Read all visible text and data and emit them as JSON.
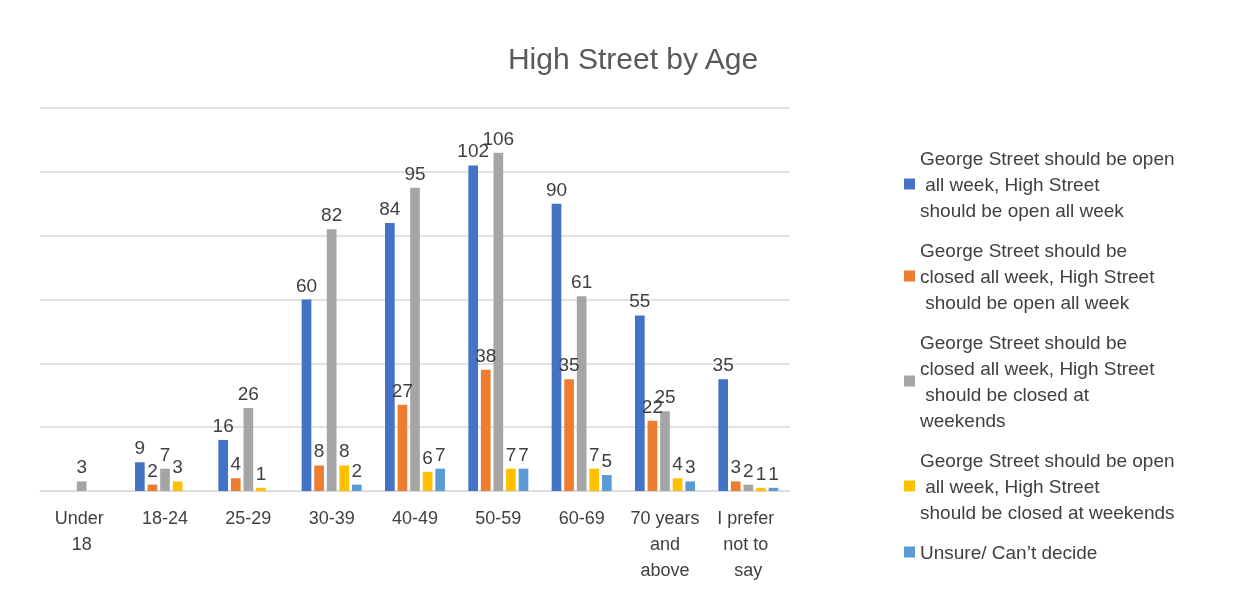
{
  "chart_data": {
    "type": "bar",
    "title": "High Street by Age",
    "categories": [
      "Under 18",
      "18-24",
      "25-29",
      "30-39",
      "40-49",
      "50-59",
      "60-69",
      "70 years and above",
      "I prefer not to say"
    ],
    "series": [
      {
        "name": "George Street should be open all week, High Street should be open all week",
        "color": "#4472c4",
        "values": [
          null,
          9,
          16,
          60,
          84,
          102,
          90,
          55,
          35
        ]
      },
      {
        "name": "George Street should be closed all week, High Street should be open all week",
        "color": "#ed7d31",
        "values": [
          null,
          2,
          4,
          8,
          27,
          38,
          35,
          22,
          3
        ]
      },
      {
        "name": "George Street should be closed all week, High Street should be closed at  weekends",
        "color": "#a5a5a5",
        "values": [
          3,
          7,
          26,
          82,
          95,
          106,
          61,
          25,
          2
        ]
      },
      {
        "name": "George Street should be open all week, High Street should be closed at weekends",
        "color": "#ffc000",
        "values": [
          null,
          3,
          1,
          8,
          6,
          7,
          7,
          4,
          1
        ]
      },
      {
        "name": "Unsure/ Can’t decide",
        "color": "#5b9bd5",
        "values": [
          null,
          null,
          null,
          2,
          7,
          7,
          5,
          3,
          1
        ]
      }
    ],
    "ylim": [
      0,
      120
    ],
    "yticks": [
      0,
      20,
      40,
      60,
      80,
      100,
      120
    ],
    "tick_labels": "x",
    "grid": "y",
    "legend": "right",
    "data_labels": true
  }
}
